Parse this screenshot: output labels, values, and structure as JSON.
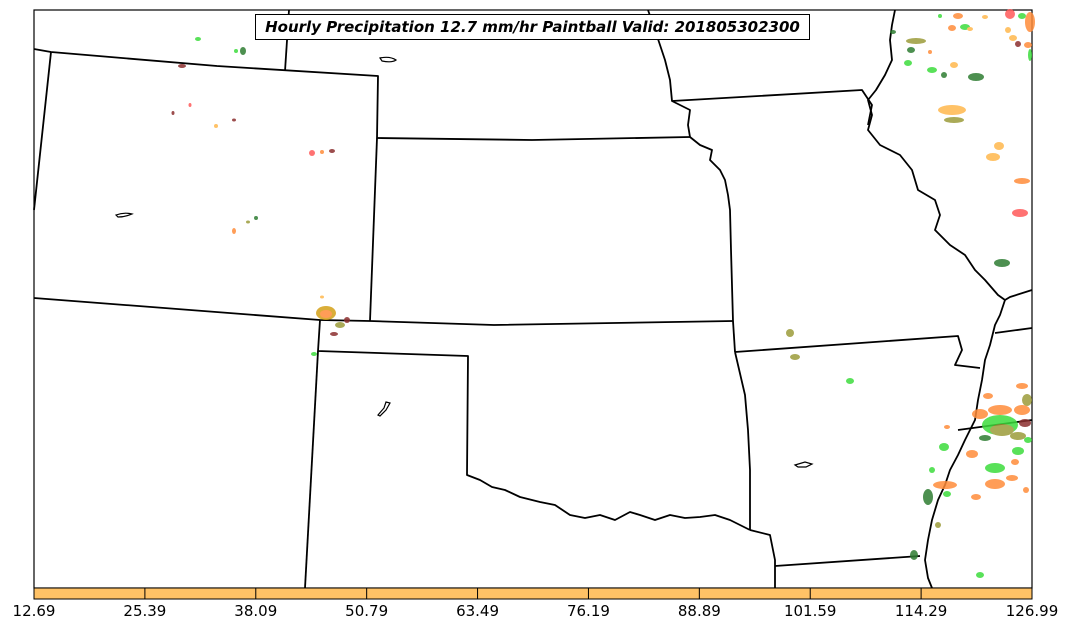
{
  "title": "Hourly Precipitation 12.7 mm/hr Paintball Valid: 201805302300",
  "colorbar": {
    "fill_color": "#ffc266",
    "ticks": [
      "12.69",
      "25.39",
      "38.09",
      "50.79",
      "63.49",
      "76.19",
      "88.89",
      "101.59",
      "114.29",
      "126.99"
    ]
  },
  "colors": {
    "land": "#ffffff",
    "boundary": "#000000",
    "precip_red": "#ff5a5a",
    "precip_orange": "#ff8c3a",
    "precip_light_orange": "#ffb84d",
    "precip_green": "#3ddc3d",
    "precip_dark_green": "#2e7d32",
    "precip_olive": "#9c9c3a",
    "precip_maroon": "#8b2e2e",
    "precip_gold": "#d4a017"
  }
}
